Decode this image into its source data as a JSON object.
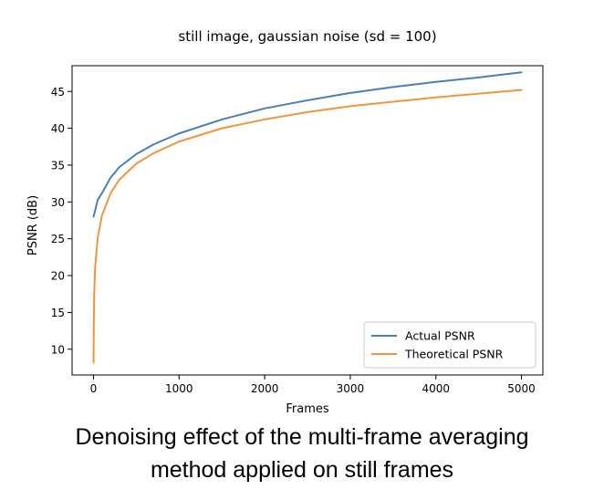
{
  "chart_data": {
    "type": "line",
    "title": "still image, gaussian noise (sd = 100)",
    "xlabel": "Frames",
    "ylabel": "PSNR (dB)",
    "xlim": [
      -250,
      5250
    ],
    "ylim": [
      6.5,
      48.5
    ],
    "xticks": [
      0,
      1000,
      2000,
      3000,
      4000,
      5000
    ],
    "yticks": [
      10,
      15,
      20,
      25,
      30,
      35,
      40,
      45
    ],
    "grid": false,
    "legend_position": "lower right",
    "series": [
      {
        "name": "Actual PSNR",
        "color": "#4a7fb5",
        "x": [
          1,
          50,
          100,
          200,
          300,
          500,
          700,
          1000,
          1500,
          2000,
          2500,
          3000,
          3500,
          4000,
          4500,
          5000
        ],
        "y": [
          28.0,
          30.3,
          31.2,
          33.3,
          34.7,
          36.5,
          37.8,
          39.3,
          41.2,
          42.7,
          43.8,
          44.8,
          45.6,
          46.3,
          46.9,
          47.6
        ]
      },
      {
        "name": "Theoretical PSNR",
        "color": "#f0953f",
        "x": [
          1,
          5,
          10,
          20,
          50,
          100,
          200,
          300,
          500,
          700,
          1000,
          1500,
          2000,
          2500,
          3000,
          3500,
          4000,
          4500,
          5000
        ],
        "y": [
          8.2,
          15.0,
          18.2,
          21.2,
          25.2,
          28.2,
          31.2,
          33.0,
          35.2,
          36.6,
          38.2,
          40.0,
          41.2,
          42.2,
          43.0,
          43.6,
          44.2,
          44.7,
          45.2
        ]
      }
    ]
  },
  "caption": {
    "line1": "Denoising effect of the multi-frame averaging",
    "line2": "method applied on still frames"
  }
}
